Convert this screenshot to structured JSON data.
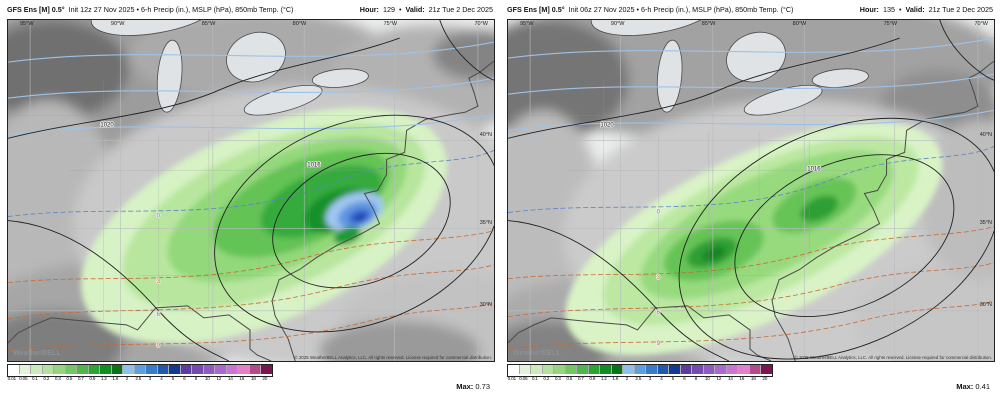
{
  "colors": {
    "panel_bg": "#ffffff",
    "map_bg": "#eceded",
    "border": "#222222",
    "precip_green": "#63c355",
    "precip_blue": "#2f62ca",
    "mslp_contour": "#222222",
    "t850_warm_contour": "#c86a32",
    "t850_cold_contour": "#5b85c8"
  },
  "colorbar": {
    "ticks": [
      "0.01",
      "0.05",
      "0.1",
      "0.2",
      "0.3",
      "0.5",
      "0.7",
      "0.9",
      "1.2",
      "1.6",
      "2",
      "2.5",
      "3",
      "4",
      "5",
      "6",
      "8",
      "10",
      "12",
      "14",
      "16",
      "18",
      "20"
    ],
    "colors": [
      "#ffffff",
      "#e3f3da",
      "#cdeabd",
      "#b4e0a1",
      "#97d383",
      "#74c565",
      "#50b54b",
      "#2da335",
      "#128c24",
      "#0a7218",
      "#8fc1ea",
      "#5f9fdd",
      "#3b7cc9",
      "#2258b0",
      "#123a94",
      "#5b3d9e",
      "#744bb0",
      "#9159c2",
      "#ae67d0",
      "#ca74d4",
      "#e081c9",
      "#b8488e",
      "#7c1650"
    ]
  },
  "map": {
    "lon_labels": [
      "95°W",
      "90°W",
      "85°W",
      "80°W",
      "75°W",
      "70°W"
    ],
    "lat_labels": [
      "40°N",
      "35°N",
      "30°N"
    ]
  },
  "panels": [
    {
      "model": "GFS Ens [M] 0.5°",
      "title_rest": "Init 12z 27 Nov 2025 • 6-h Precip (in.), MSLP (hPa), 850mb Temp. (°C)",
      "hour_label": "Hour:",
      "hour_value": "129",
      "bullet": "•",
      "valid_label": "Valid:",
      "valid_value": "21z Tue 2 Dec 2025",
      "max_label": "Max:",
      "max_value": "0.73",
      "watermark": "WeatherBELL",
      "copyright": "© 2025 WeatherBELL Analytics, LLC. All rights reserved. License required for commercial distribution.",
      "contour_labels": {
        "mslp_a": "1016",
        "mslp_b": "1020",
        "t850_a": "0",
        "t850_b": "3",
        "t850_c": "6",
        "t850_d": "9"
      }
    },
    {
      "model": "GFS Ens [M] 0.5°",
      "title_rest": "Init 06z 27 Nov 2025 • 6-h Precip (in.), MSLP (hPa), 850mb Temp. (°C)",
      "hour_label": "Hour:",
      "hour_value": "135",
      "bullet": "•",
      "valid_label": "Valid:",
      "valid_value": "21z Tue 2 Dec 2025",
      "max_label": "Max:",
      "max_value": "0.41",
      "watermark": "WeatherBELL",
      "copyright": "© 2025 WeatherBELL Analytics, LLC. All rights reserved. License required for commercial distribution.",
      "contour_labels": {
        "mslp_a": "1016",
        "mslp_b": "1020",
        "t850_a": "0",
        "t850_b": "3",
        "t850_c": "6",
        "t850_d": "9"
      }
    }
  ]
}
